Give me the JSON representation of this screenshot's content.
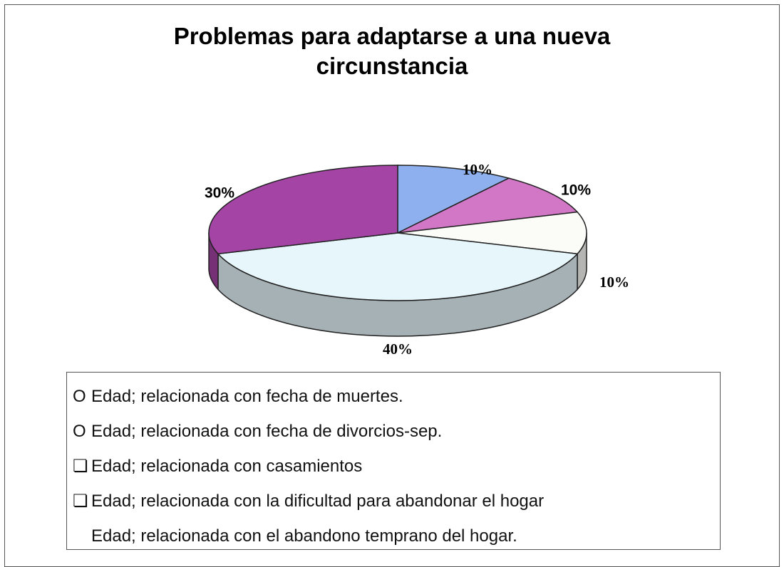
{
  "chart_data": {
    "type": "pie",
    "title": "Problemas para adaptarse a una nueva circunstancia",
    "categories": [
      "Edad; relacionada con fecha de muertes.",
      "Edad; relacionada con fecha de divorcios-sep.",
      "Edad; relacionada con casamientos",
      "Edad; relacionada con la dificultad para abandonar el hogar",
      "Edad; relacionada con el abandono temprano del hogar."
    ],
    "values": [
      10,
      10,
      10,
      40,
      30
    ],
    "value_labels": [
      "10%",
      "10%",
      "10%",
      "40%",
      "30%"
    ],
    "colors": [
      "#8fb0ee",
      "#d276c6",
      "#fbfbf8",
      "#e6f6fb",
      "#a444a4"
    ]
  }
}
